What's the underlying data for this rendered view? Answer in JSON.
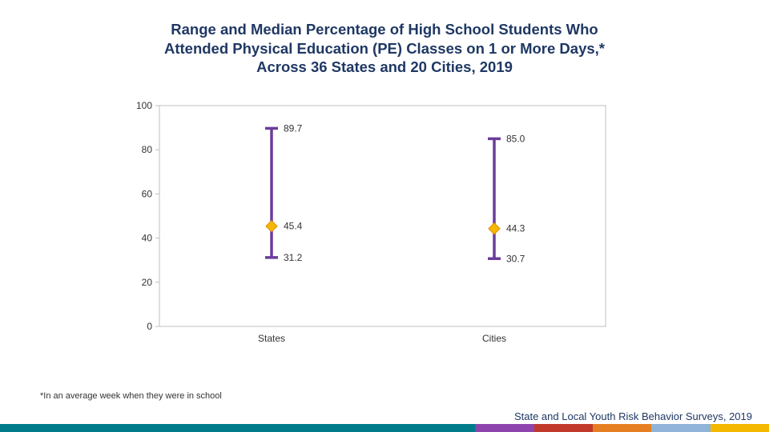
{
  "title": {
    "line1": "Range and Median Percentage of High School Students Who",
    "line2": "Attended Physical Education (PE) Classes on 1 or More Days,*",
    "line3": "Across 36 States and 20 Cities, 2019"
  },
  "chart_data": {
    "type": "range-median",
    "title": "Range and Median Percentage of High School Students Who Attended Physical Education (PE) Classes on 1 or More Days,* Across 36 States and 20 Cities, 2019",
    "xlabel": "",
    "ylabel": "",
    "ylim": [
      0,
      100
    ],
    "yticks": [
      0,
      20,
      40,
      60,
      80,
      100
    ],
    "grid": false,
    "categories": [
      "States",
      "Cities"
    ],
    "series": [
      {
        "name": "Maximum",
        "values": [
          89.7,
          85.0
        ],
        "labels": [
          "89.7",
          "85.0"
        ]
      },
      {
        "name": "Median",
        "values": [
          45.4,
          44.3
        ],
        "labels": [
          "45.4",
          "44.3"
        ]
      },
      {
        "name": "Minimum",
        "values": [
          31.2,
          30.7
        ],
        "labels": [
          "31.2",
          "30.7"
        ]
      }
    ]
  },
  "footnote": "*In an average week when they were in school",
  "source": "State and Local Youth Risk Behavior Surveys, 2019",
  "colors": {
    "range": "#6a3d9a",
    "median": "#f5b800",
    "median_edge": "#e08a00",
    "axis": "#bfbfbf",
    "title": "#1f3864",
    "bar_segments": [
      "#007b8a",
      "#007b8a",
      "#007b8a",
      "#007b8a",
      "#007b8a",
      "#8e44ad",
      "#c0392b",
      "#e67e22",
      "#8fb3d9",
      "#f5b800",
      "#1f5f9e"
    ]
  }
}
